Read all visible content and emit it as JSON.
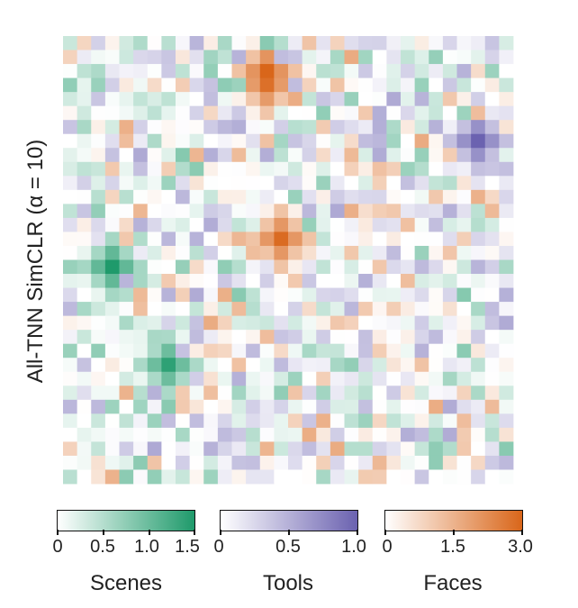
{
  "chart_data": {
    "type": "heatmap",
    "title": "",
    "ylabel": "All-TNN SimCLR (α = 10)",
    "grid_size": [
      32,
      32
    ],
    "description_of_values": "cell category selectivity map; each cell colored by preferred category",
    "categories": [
      {
        "name": "Scenes",
        "color": "#1f9a6b",
        "range": [
          0,
          1.5
        ],
        "ticks": [
          "0",
          "0.5",
          "1.0",
          "1.5"
        ]
      },
      {
        "name": "Tools",
        "color": "#6b62b0",
        "range": [
          0,
          1.0
        ],
        "ticks": [
          "0",
          "0.5",
          "1.0"
        ]
      },
      {
        "name": "Faces",
        "color": "#d9661a",
        "range": [
          0,
          3.0
        ],
        "ticks": [
          "0",
          "1.5",
          "3.0"
        ]
      }
    ],
    "hotspots": [
      {
        "category": "Faces",
        "row": 2,
        "col": 14,
        "value": 3.0
      },
      {
        "category": "Faces",
        "row": 3,
        "col": 14,
        "value": 2.8
      },
      {
        "category": "Faces",
        "row": 14,
        "col": 15,
        "value": 2.9
      },
      {
        "category": "Scenes",
        "row": 16,
        "col": 3,
        "value": 1.5
      },
      {
        "category": "Scenes",
        "row": 23,
        "col": 7,
        "value": 1.4
      },
      {
        "category": "Tools",
        "row": 7,
        "col": 29,
        "value": 1.0
      }
    ]
  },
  "colorbars": {
    "scenes": {
      "label": "Scenes",
      "ticks": [
        "0",
        "0.5",
        "1.0",
        "1.5"
      ]
    },
    "tools": {
      "label": "Tools",
      "ticks": [
        "0",
        "0.5",
        "1.0"
      ]
    },
    "faces": {
      "label": "Faces",
      "ticks": [
        "0",
        "1.5",
        "3.0"
      ]
    }
  },
  "colors": {
    "scenes": "#1f9a6b",
    "tools": "#6b62b0",
    "faces": "#d9661a"
  }
}
